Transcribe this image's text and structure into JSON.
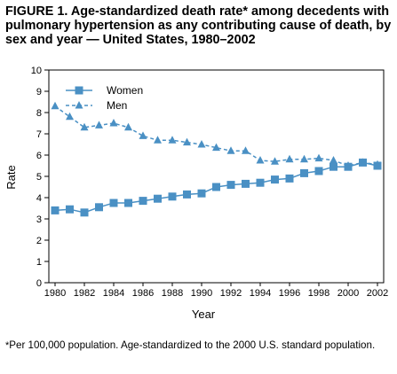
{
  "figure": {
    "title": "FIGURE 1. Age-standardized death rate* among decedents with pulmonary hypertension as any contributing cause of death, by sex and year — United States, 1980–2002",
    "footnote_mark": "*",
    "footnote": "Per 100,000 population. Age-standardized to the 2000 U.S. standard population."
  },
  "chart_data": {
    "type": "line",
    "title": "FIGURE 1. Age-standardized death rate* among decedents with pulmonary hypertension as any contributing cause of death, by sex and year — United States, 1980–2002",
    "xlabel": "Year",
    "ylabel": "Rate",
    "xlim": [
      1980,
      2002
    ],
    "ylim": [
      0,
      10
    ],
    "x_ticks": [
      "1980",
      "1982",
      "1984",
      "1986",
      "1988",
      "1990",
      "1992",
      "1994",
      "1996",
      "1998",
      "2000",
      "2002"
    ],
    "y_ticks": [
      "0",
      "1",
      "2",
      "3",
      "4",
      "5",
      "6",
      "7",
      "8",
      "9",
      "10"
    ],
    "grid": false,
    "legend_position": "top-left",
    "x": [
      1980,
      1981,
      1982,
      1983,
      1984,
      1985,
      1986,
      1987,
      1988,
      1989,
      1990,
      1991,
      1992,
      1993,
      1994,
      1995,
      1996,
      1997,
      1998,
      1999,
      2000,
      2001,
      2002
    ],
    "series": [
      {
        "name": "Women",
        "color": "#4a90c4",
        "marker": "square",
        "line_style": "solid",
        "values": [
          3.4,
          3.45,
          3.3,
          3.55,
          3.75,
          3.75,
          3.85,
          3.95,
          4.05,
          4.15,
          4.2,
          4.5,
          4.6,
          4.65,
          4.7,
          4.85,
          4.9,
          5.15,
          5.25,
          5.45,
          5.45,
          5.65,
          5.5
        ]
      },
      {
        "name": "Men",
        "color": "#4a90c4",
        "marker": "triangle",
        "line_style": "dashed",
        "values": [
          8.3,
          7.8,
          7.3,
          7.4,
          7.5,
          7.3,
          6.9,
          6.7,
          6.7,
          6.6,
          6.5,
          6.35,
          6.2,
          6.2,
          5.75,
          5.7,
          5.8,
          5.8,
          5.85,
          5.75,
          5.5,
          5.65,
          5.55
        ]
      }
    ]
  }
}
